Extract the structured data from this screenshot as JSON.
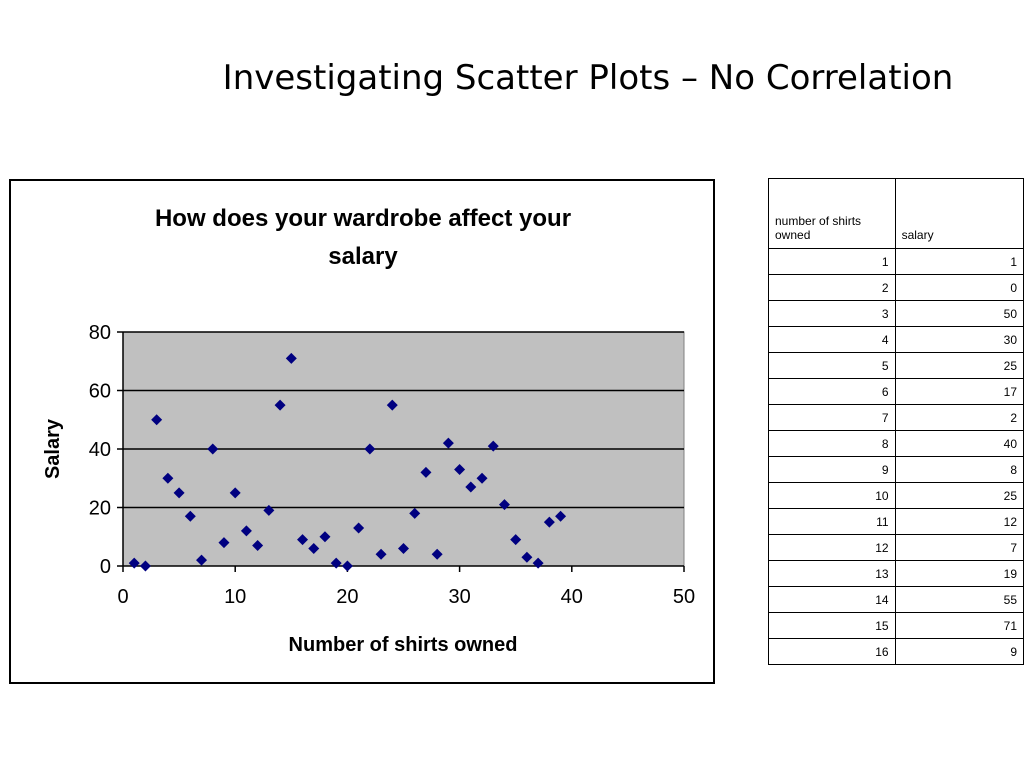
{
  "slide": {
    "title": "Investigating Scatter Plots – No Correlation"
  },
  "chart_data": {
    "type": "scatter",
    "title_lines": [
      "How does your wardrobe affect your",
      "salary"
    ],
    "xlabel": "Number of shirts owned",
    "ylabel": "Salary",
    "xlim": [
      0,
      50
    ],
    "ylim": [
      0,
      80
    ],
    "xticks": [
      0,
      10,
      20,
      30,
      40,
      50
    ],
    "yticks": [
      0,
      20,
      40,
      60,
      80
    ],
    "grid": "horizontal",
    "legend": "none",
    "plot_bg": "#c0c0c0",
    "marker_color": "#000080",
    "points": [
      [
        1,
        1
      ],
      [
        2,
        0
      ],
      [
        3,
        50
      ],
      [
        4,
        30
      ],
      [
        5,
        25
      ],
      [
        6,
        17
      ],
      [
        7,
        2
      ],
      [
        8,
        40
      ],
      [
        9,
        8
      ],
      [
        10,
        25
      ],
      [
        11,
        12
      ],
      [
        12,
        7
      ],
      [
        13,
        19
      ],
      [
        14,
        55
      ],
      [
        15,
        71
      ],
      [
        16,
        9
      ],
      [
        17,
        6
      ],
      [
        18,
        10
      ],
      [
        19,
        1
      ],
      [
        20,
        0
      ],
      [
        21,
        13
      ],
      [
        22,
        40
      ],
      [
        23,
        4
      ],
      [
        24,
        55
      ],
      [
        25,
        6
      ],
      [
        26,
        18
      ],
      [
        27,
        32
      ],
      [
        28,
        4
      ],
      [
        29,
        42
      ],
      [
        30,
        33
      ],
      [
        31,
        27
      ],
      [
        32,
        30
      ],
      [
        33,
        41
      ],
      [
        34,
        21
      ],
      [
        35,
        9
      ],
      [
        36,
        3
      ],
      [
        37,
        1
      ],
      [
        38,
        15
      ],
      [
        39,
        17
      ]
    ]
  },
  "table": {
    "headers": [
      "number of shirts owned",
      "salary"
    ],
    "rows": [
      [
        "1",
        "1"
      ],
      [
        "2",
        "0"
      ],
      [
        "3",
        "50"
      ],
      [
        "4",
        "30"
      ],
      [
        "5",
        "25"
      ],
      [
        "6",
        "17"
      ],
      [
        "7",
        "2"
      ],
      [
        "8",
        "40"
      ],
      [
        "9",
        "8"
      ],
      [
        "10",
        "25"
      ],
      [
        "11",
        "12"
      ],
      [
        "12",
        "7"
      ],
      [
        "13",
        "19"
      ],
      [
        "14",
        "55"
      ],
      [
        "15",
        "71"
      ],
      [
        "16",
        "9"
      ]
    ]
  }
}
